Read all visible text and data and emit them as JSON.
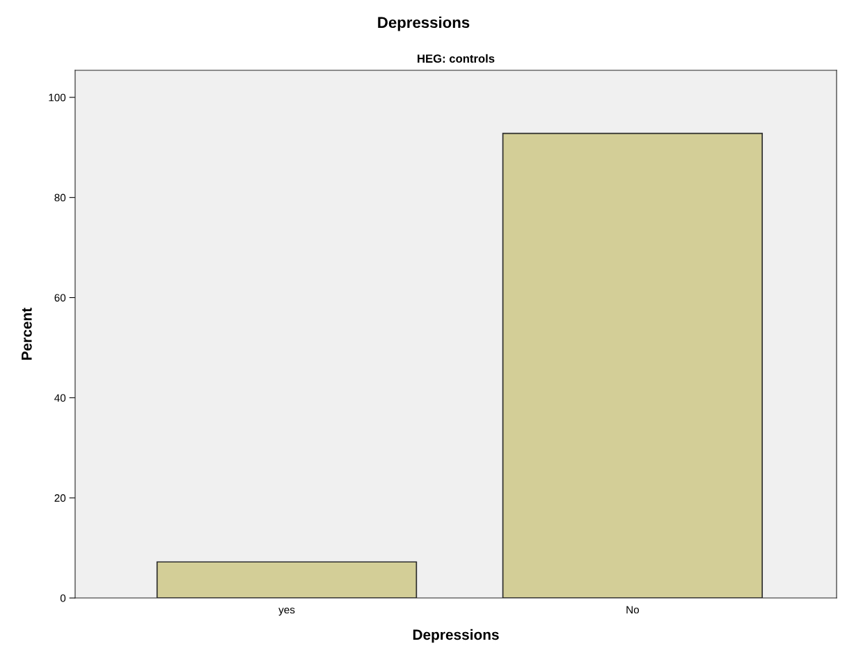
{
  "chart_data": {
    "type": "bar",
    "title": "Depressions",
    "subtitle": "HEG: controls",
    "xlabel": "Depressions",
    "ylabel": "Percent",
    "categories": [
      "yes",
      "No"
    ],
    "values": [
      7.2,
      92.8
    ],
    "color": "#d3ce97",
    "ylim": [
      0,
      105.4
    ],
    "yticks": [
      0,
      20,
      40,
      60,
      80,
      100
    ],
    "grid": false,
    "legend": false
  }
}
